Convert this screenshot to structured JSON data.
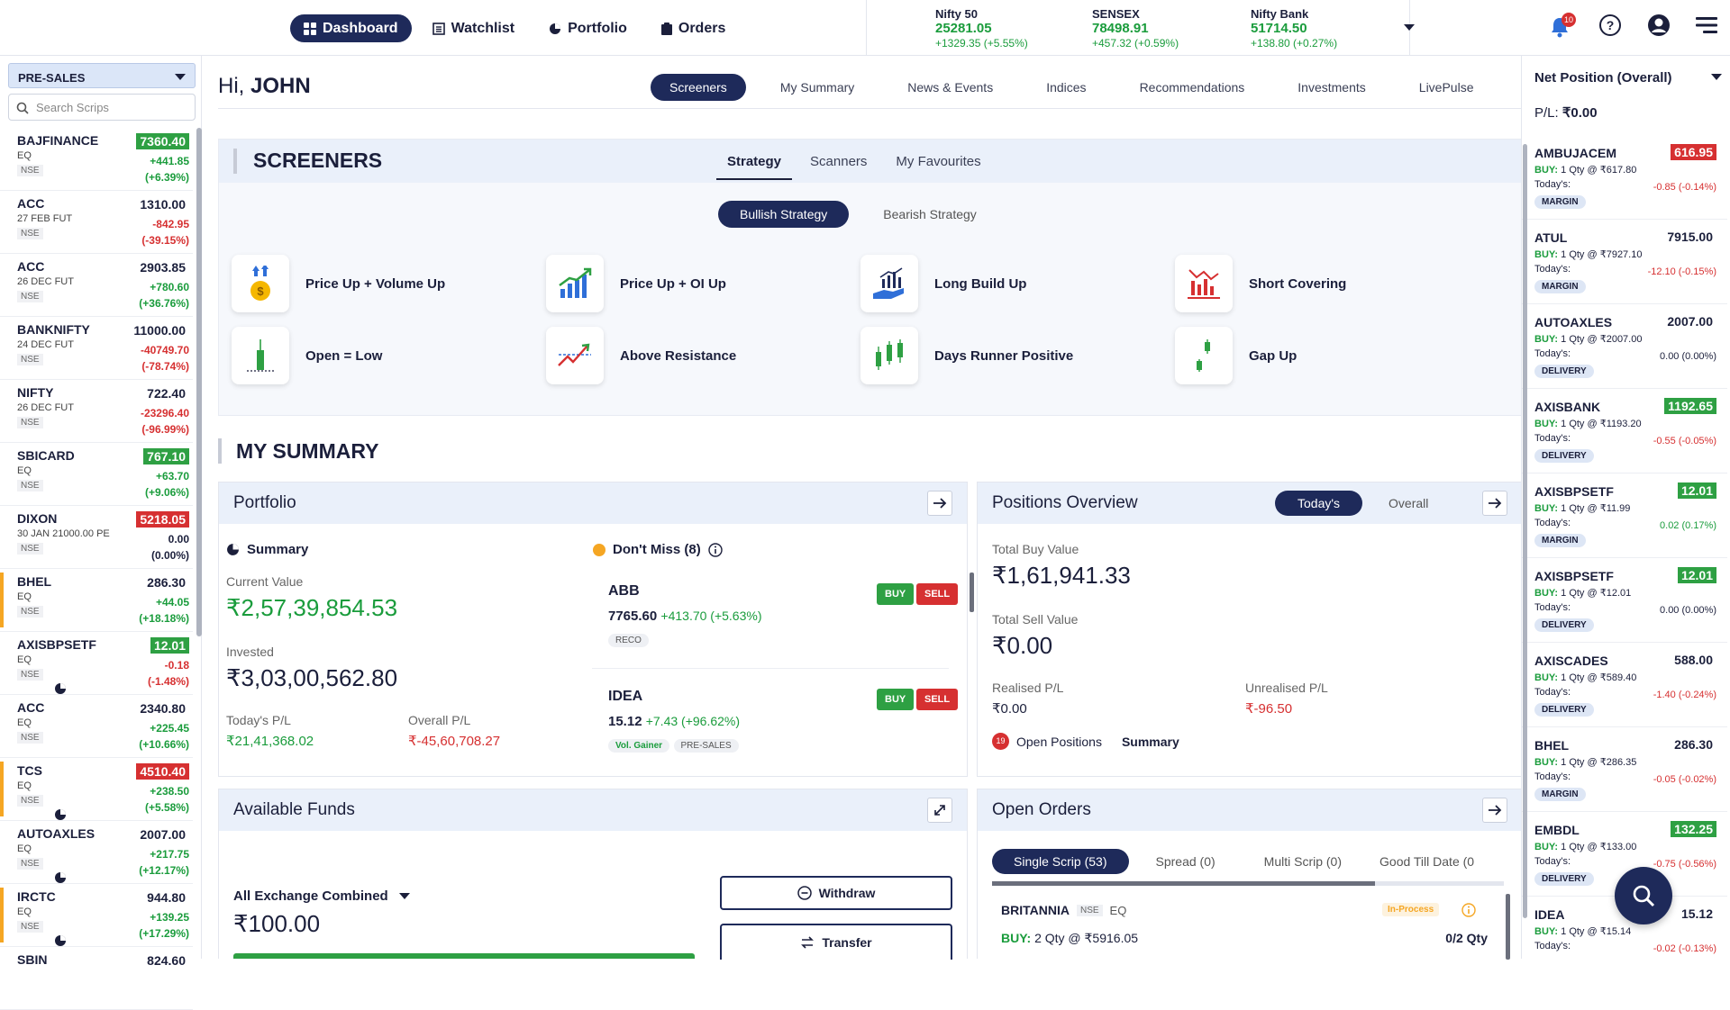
{
  "nav": {
    "items": [
      {
        "label": "Dashboard",
        "icon": "grid-icon",
        "active": true
      },
      {
        "label": "Watchlist",
        "icon": "list-icon",
        "active": false
      },
      {
        "label": "Portfolio",
        "icon": "pie-icon",
        "active": false
      },
      {
        "label": "Orders",
        "icon": "clipboard-icon",
        "active": false
      }
    ]
  },
  "indices": [
    {
      "name": "Nifty 50",
      "value": "25281.05",
      "change": "+1329.35 (+5.55%)"
    },
    {
      "name": "SENSEX",
      "value": "78498.91",
      "change": "+457.32 (+0.59%)"
    },
    {
      "name": "Nifty Bank",
      "value": "51714.50",
      "change": "+138.80 (+0.27%)"
    }
  ],
  "header": {
    "notification_count": "10"
  },
  "watchlist": {
    "selector": "PRE-SALES",
    "search_placeholder": "Search Scrips",
    "rows": [
      {
        "symbol": "BAJFINANCE",
        "type": "EQ",
        "exchange": "NSE",
        "price": "7360.40",
        "change": "+441.85",
        "pct": "(+6.39%)",
        "price_style": "g",
        "color": "gr",
        "mark": false,
        "pie": false
      },
      {
        "symbol": "ACC",
        "type": "27 FEB FUT",
        "exchange": "NSE",
        "price": "1310.00",
        "change": "-842.95",
        "pct": "(-39.15%)",
        "price_style": "",
        "color": "rd",
        "mark": false,
        "pie": false
      },
      {
        "symbol": "ACC",
        "type": "26 DEC FUT",
        "exchange": "NSE",
        "price": "2903.85",
        "change": "+780.60",
        "pct": "(+36.76%)",
        "price_style": "",
        "color": "gr",
        "mark": false,
        "pie": false
      },
      {
        "symbol": "BANKNIFTY",
        "type": "24 DEC FUT",
        "exchange": "NSE",
        "price": "11000.00",
        "change": "-40749.70",
        "pct": "(-78.74%)",
        "price_style": "",
        "color": "rd",
        "mark": false,
        "pie": false
      },
      {
        "symbol": "NIFTY",
        "type": "26 DEC FUT",
        "exchange": "NSE",
        "price": "722.40",
        "change": "-23296.40",
        "pct": "(-96.99%)",
        "price_style": "",
        "color": "rd",
        "mark": false,
        "pie": false
      },
      {
        "symbol": "SBICARD",
        "type": "EQ",
        "exchange": "NSE",
        "price": "767.10",
        "change": "+63.70",
        "pct": "(+9.06%)",
        "price_style": "g",
        "color": "gr",
        "mark": false,
        "pie": false
      },
      {
        "symbol": "DIXON",
        "type": "30 JAN 21000.00 PE",
        "exchange": "NSE",
        "price": "5218.05",
        "change": "0.00",
        "pct": "(0.00%)",
        "price_style": "r",
        "color": "bk",
        "mark": false,
        "pie": false
      },
      {
        "symbol": "BHEL",
        "type": "EQ",
        "exchange": "NSE",
        "price": "286.30",
        "change": "+44.05",
        "pct": "(+18.18%)",
        "price_style": "",
        "color": "gr",
        "mark": true,
        "pie": false
      },
      {
        "symbol": "AXISBPSETF",
        "type": "EQ",
        "exchange": "NSE",
        "price": "12.01",
        "change": "-0.18",
        "pct": "(-1.48%)",
        "price_style": "g",
        "color": "rd",
        "mark": false,
        "pie": true
      },
      {
        "symbol": "ACC",
        "type": "EQ",
        "exchange": "NSE",
        "price": "2340.80",
        "change": "+225.45",
        "pct": "(+10.66%)",
        "price_style": "",
        "color": "gr",
        "mark": false,
        "pie": false
      },
      {
        "symbol": "TCS",
        "type": "EQ",
        "exchange": "NSE",
        "price": "4510.40",
        "change": "+238.50",
        "pct": "(+5.58%)",
        "price_style": "r",
        "color": "gr",
        "mark": true,
        "pie": true
      },
      {
        "symbol": "AUTOAXLES",
        "type": "EQ",
        "exchange": "NSE",
        "price": "2007.00",
        "change": "+217.75",
        "pct": "(+12.17%)",
        "price_style": "",
        "color": "gr",
        "mark": false,
        "pie": true
      },
      {
        "symbol": "IRCTC",
        "type": "EQ",
        "exchange": "NSE",
        "price": "944.80",
        "change": "+139.25",
        "pct": "(+17.29%)",
        "price_style": "",
        "color": "gr",
        "mark": true,
        "pie": true
      },
      {
        "symbol": "SBIN",
        "type": "",
        "exchange": "",
        "price": "824.60",
        "change": "",
        "pct": "",
        "price_style": "",
        "color": "gr",
        "mark": false,
        "pie": false
      }
    ]
  },
  "greeting": {
    "prefix": "Hi, ",
    "name": "JOHN"
  },
  "main_tabs": [
    "Screeners",
    "My Summary",
    "News & Events",
    "Indices",
    "Recommendations",
    "Investments",
    "LivePulse"
  ],
  "screeners": {
    "title": "SCREENERS",
    "tabs": [
      "Strategy",
      "Scanners",
      "My Favourites"
    ],
    "strategy_tabs": [
      "Bullish Strategy",
      "Bearish Strategy"
    ],
    "items": [
      {
        "label": "Price Up + Volume Up",
        "icon": "money-bag-up-icon"
      },
      {
        "label": "Price Up + OI Up",
        "icon": "bar-chart-up-icon"
      },
      {
        "label": "Long Build Up",
        "icon": "hand-chart-icon"
      },
      {
        "label": "Short Covering",
        "icon": "red-bars-icon"
      },
      {
        "label": "Open = Low",
        "icon": "candle-low-icon"
      },
      {
        "label": "Above Resistance",
        "icon": "breakout-line-icon"
      },
      {
        "label": "Days Runner Positive",
        "icon": "candles-icon"
      },
      {
        "label": "Gap Up",
        "icon": "gap-candle-icon"
      }
    ]
  },
  "summary": {
    "title": "MY SUMMARY",
    "portfolio": {
      "title": "Portfolio",
      "summary_label": "Summary",
      "current_value_label": "Current Value",
      "current_value": "₹2,57,39,854.53",
      "invested_label": "Invested",
      "invested": "₹3,03,00,562.80",
      "todays_pl_label": "Today's P/L",
      "todays_pl": "₹21,41,368.02",
      "overall_pl_label": "Overall P/L",
      "overall_pl": "₹-45,60,708.27",
      "dont_miss_label": "Don't Miss (8)",
      "dont_miss": [
        {
          "symbol": "ABB",
          "price": "7765.60",
          "change": "+413.70 (+5.63%)",
          "tags": [
            "RECO"
          ]
        },
        {
          "symbol": "IDEA",
          "price": "15.12",
          "change": "+7.43 (+96.62%)",
          "tags": [
            "Vol. Gainer",
            "PRE-SALES"
          ]
        }
      ],
      "buy_label": "BUY",
      "sell_label": "SELL"
    },
    "positions": {
      "title": "Positions Overview",
      "tabs": [
        "Today's",
        "Overall"
      ],
      "total_buy_label": "Total Buy Value",
      "total_buy": "₹1,61,941.33",
      "total_sell_label": "Total Sell Value",
      "total_sell": "₹0.00",
      "realised_label": "Realised P/L",
      "realised": "₹0.00",
      "unrealised_label": "Unrealised P/L",
      "unrealised": "₹-96.50",
      "open_count": "19",
      "open_label": "Open Positions",
      "summary_label": "Summary"
    },
    "funds": {
      "title": "Available Funds",
      "exchange": "All Exchange Combined",
      "amount": "₹100.00",
      "withdraw": "Withdraw",
      "transfer": "Transfer"
    },
    "orders": {
      "title": "Open Orders",
      "tabs": [
        "Single Scrip (53)",
        "Spread (0)",
        "Multi Scrip (0)",
        "Good Till Date (0"
      ],
      "row": {
        "symbol": "BRITANNIA",
        "exchange": "NSE",
        "type": "EQ",
        "status": "In-Process",
        "buy": "BUY:",
        "qty": "2 Qty @ ₹5916.05",
        "filled": "0/2 Qty"
      }
    }
  },
  "net_position": {
    "title": "Net Position (Overall)",
    "pl_label": "P/L: ",
    "pl_value": "₹0.00",
    "rows": [
      {
        "symbol": "AMBUJACEM",
        "price": "616.95",
        "price_style": "r",
        "qty": "1 Qty @ ₹617.80",
        "today": "-0.85 (-0.14%)",
        "color": "rd",
        "type": "MARGIN"
      },
      {
        "symbol": "ATUL",
        "price": "7915.00",
        "price_style": "",
        "qty": "1 Qty @ ₹7927.10",
        "today": "-12.10 (-0.15%)",
        "color": "rd",
        "type": "MARGIN"
      },
      {
        "symbol": "AUTOAXLES",
        "price": "2007.00",
        "price_style": "",
        "qty": "1 Qty @ ₹2007.00",
        "today": "0.00 (0.00%)",
        "color": "bk",
        "type": "DELIVERY"
      },
      {
        "symbol": "AXISBANK",
        "price": "1192.65",
        "price_style": "g",
        "qty": "1 Qty @ ₹1193.20",
        "today": "-0.55 (-0.05%)",
        "color": "rd",
        "type": "DELIVERY"
      },
      {
        "symbol": "AXISBPSETF",
        "price": "12.01",
        "price_style": "g",
        "qty": "1 Qty @ ₹11.99",
        "today": "0.02 (0.17%)",
        "color": "gr",
        "type": "MARGIN"
      },
      {
        "symbol": "AXISBPSETF",
        "price": "12.01",
        "price_style": "g",
        "qty": "1 Qty @ ₹12.01",
        "today": "0.00 (0.00%)",
        "color": "bk",
        "type": "DELIVERY"
      },
      {
        "symbol": "AXISCADES",
        "price": "588.00",
        "price_style": "",
        "qty": "1 Qty @ ₹589.40",
        "today": "-1.40 (-0.24%)",
        "color": "rd",
        "type": "DELIVERY"
      },
      {
        "symbol": "BHEL",
        "price": "286.30",
        "price_style": "",
        "qty": "1 Qty @ ₹286.35",
        "today": "-0.05 (-0.02%)",
        "color": "rd",
        "type": "MARGIN"
      },
      {
        "symbol": "EMBDL",
        "price": "132.25",
        "price_style": "g",
        "qty": "1 Qty @ ₹133.00",
        "today": "-0.75 (-0.56%)",
        "color": "rd",
        "type": "DELIVERY"
      },
      {
        "symbol": "IDEA",
        "price": "15.12",
        "price_style": "",
        "qty": "1 Qty @ ₹15.14",
        "today": "-0.02 (-0.13%)",
        "color": "rd",
        "type": ""
      }
    ],
    "buy_label": "BUY: ",
    "today_label": "Today's:"
  },
  "colors": {
    "accent": "#1e2a5a",
    "green": "#1a9c3c",
    "red": "#d63031"
  }
}
